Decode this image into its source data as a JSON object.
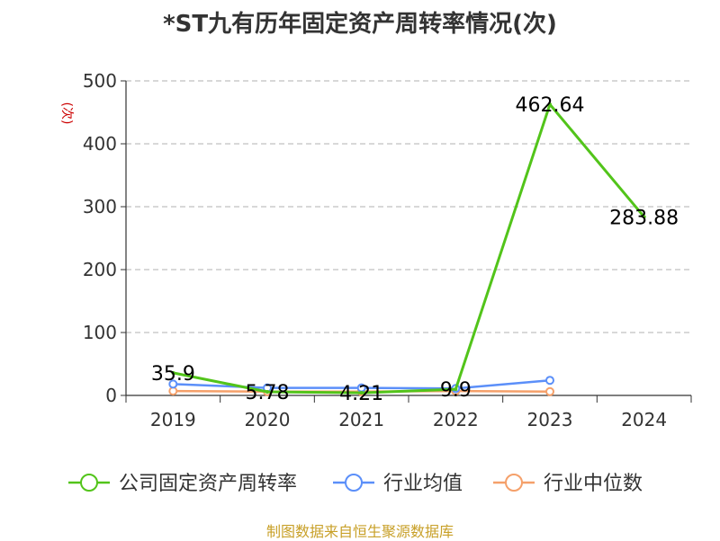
{
  "chart_data": {
    "type": "line",
    "title": "*ST九有历年固定资产周转率情况(次)",
    "ylabel": "(次)",
    "categories": [
      "2019",
      "2020",
      "2021",
      "2022",
      "2023",
      "2024"
    ],
    "ylim": [
      0,
      500
    ],
    "yticks": [
      0,
      100,
      200,
      300,
      400,
      500
    ],
    "grid": true,
    "legend_position": "bottom",
    "series": [
      {
        "name": "公司固定资产周转率",
        "color": "#52c41a",
        "values": [
          35.9,
          5.78,
          4.21,
          9.9,
          462.64,
          283.88
        ],
        "labels": [
          "35.9",
          "5.78",
          "4.21",
          "9.9",
          "462.64",
          "283.88"
        ]
      },
      {
        "name": "行业均值",
        "color": "#5b8ff9",
        "values": [
          18,
          12,
          12,
          11,
          24,
          null
        ]
      },
      {
        "name": "行业中位数",
        "color": "#f5a06a",
        "values": [
          7,
          6,
          6,
          7,
          6,
          null
        ]
      }
    ]
  },
  "source": "制图数据来自恒生聚源数据库"
}
